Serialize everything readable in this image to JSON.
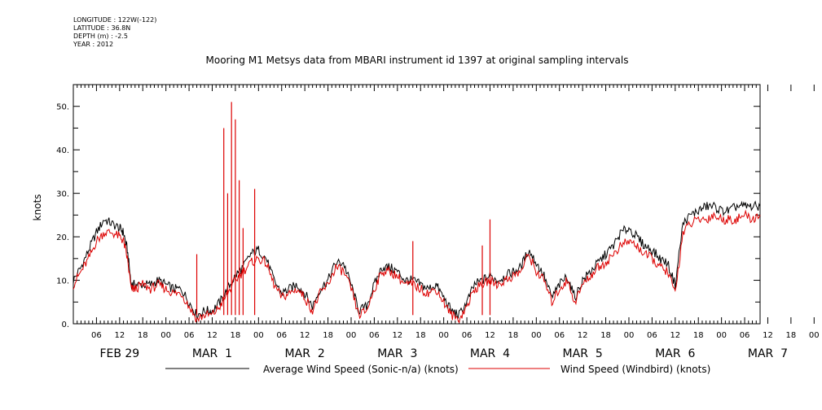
{
  "header": {
    "longitude": "LONGITUDE : 122W(-122)",
    "latitude": "LATITUDE : 36.8N",
    "depth": "DEPTH (m) : -2.5",
    "year": "YEAR : 2012"
  },
  "chart_data": {
    "type": "line",
    "title": "Mooring M1 Metsys data from MBARI instrument id 1397 at original sampling intervals",
    "ylabel": "knots",
    "xlabel": "",
    "x_units": "hours since FEB 29 00:00 (2012)",
    "xlim": [
      0,
      178
    ],
    "ylim": [
      0,
      55
    ],
    "yticks": [
      0,
      10,
      20,
      30,
      40,
      50
    ],
    "ytick_labels": [
      "0.",
      "10.",
      "20.",
      "30.",
      "40.",
      "50."
    ],
    "hour_ticks": [
      "06",
      "12",
      "18",
      "00",
      "06",
      "12",
      "18",
      "00",
      "06",
      "12",
      "18",
      "00",
      "06",
      "12",
      "18",
      "00",
      "06",
      "12",
      "18",
      "00",
      "06",
      "12",
      "18",
      "00",
      "06",
      "12",
      "18",
      "00",
      "06",
      "12",
      "18",
      "00"
    ],
    "day_labels": [
      "FEB 29",
      "MAR  1",
      "MAR  2",
      "MAR  3",
      "MAR  4",
      "MAR  5",
      "MAR  6",
      "MAR  7"
    ],
    "grid": false,
    "legend_position": "bottom",
    "series": [
      {
        "name": "Average Wind Speed (Sonic-n/a) (knots)",
        "color": "#000000",
        "x": [
          0,
          2,
          4,
          6,
          8,
          10,
          12,
          13,
          14,
          15,
          16,
          18,
          20,
          22,
          24,
          26,
          28,
          30,
          32,
          34,
          36,
          38,
          40,
          42,
          44,
          46,
          48,
          50,
          52,
          54,
          56,
          58,
          60,
          62,
          64,
          66,
          68,
          70,
          72,
          74,
          76,
          78,
          80,
          82,
          84,
          86,
          88,
          90,
          92,
          94,
          96,
          98,
          100,
          102,
          104,
          106,
          108,
          110,
          112,
          114,
          116,
          118,
          120,
          122,
          124,
          126,
          128,
          130,
          132,
          134,
          136,
          138,
          140,
          142,
          144,
          146,
          148,
          150,
          152,
          154,
          156,
          158,
          160,
          162,
          164,
          166,
          168,
          170,
          172,
          174,
          176,
          178
        ],
        "y": [
          10,
          13,
          17,
          21,
          24,
          23,
          22,
          21,
          17,
          9,
          9,
          9,
          9,
          10,
          9,
          8,
          8,
          5,
          2,
          3,
          3,
          5,
          8,
          11,
          13,
          16,
          17,
          15,
          10,
          7,
          8,
          9,
          7,
          4,
          8,
          10,
          14,
          14,
          9,
          3,
          4,
          9,
          13,
          13,
          12,
          10,
          10,
          9,
          8,
          9,
          6,
          3,
          2,
          5,
          9,
          10,
          11,
          10,
          11,
          12,
          13,
          17,
          14,
          11,
          6,
          9,
          11,
          6,
          10,
          12,
          14,
          16,
          18,
          21,
          22,
          20,
          18,
          17,
          15,
          14,
          9,
          23,
          25,
          26,
          27,
          27,
          26,
          26,
          27,
          27,
          27,
          27
        ]
      },
      {
        "name": "Wind Speed (Windbird) (knots)",
        "color": "#dd0000",
        "x": [
          0,
          2,
          4,
          6,
          8,
          10,
          12,
          13,
          14,
          15,
          16,
          18,
          20,
          22,
          24,
          26,
          28,
          30,
          32,
          34,
          36,
          38,
          40,
          42,
          44,
          46,
          48,
          50,
          52,
          54,
          56,
          58,
          60,
          62,
          64,
          66,
          68,
          70,
          72,
          74,
          76,
          78,
          80,
          82,
          84,
          86,
          88,
          90,
          92,
          94,
          96,
          98,
          100,
          102,
          104,
          106,
          108,
          110,
          112,
          114,
          116,
          118,
          120,
          122,
          124,
          126,
          128,
          130,
          132,
          134,
          136,
          138,
          140,
          142,
          144,
          146,
          148,
          150,
          152,
          154,
          156,
          158,
          160,
          162,
          164,
          166,
          168,
          170,
          172,
          174,
          176,
          178
        ],
        "y": [
          9,
          12,
          15,
          19,
          21,
          21,
          20,
          19,
          15,
          8,
          8,
          9,
          8,
          9,
          8,
          7,
          7,
          4,
          1,
          2,
          2,
          4,
          7,
          10,
          12,
          14,
          15,
          14,
          9,
          6,
          7,
          8,
          6,
          3,
          7,
          9,
          13,
          12,
          8,
          2,
          3,
          8,
          12,
          12,
          11,
          9,
          9,
          8,
          7,
          8,
          5,
          2,
          1,
          4,
          8,
          9,
          10,
          9,
          10,
          11,
          12,
          16,
          12,
          10,
          5,
          8,
          10,
          5,
          9,
          11,
          13,
          14,
          16,
          18,
          19,
          18,
          16,
          15,
          13,
          12,
          7,
          21,
          23,
          24,
          24,
          25,
          24,
          24,
          24,
          25,
          24,
          25
        ],
        "spikes": [
          {
            "x": 39,
            "y": 45
          },
          {
            "x": 40,
            "y": 30
          },
          {
            "x": 41,
            "y": 51
          },
          {
            "x": 42,
            "y": 47
          },
          {
            "x": 43,
            "y": 33
          },
          {
            "x": 44,
            "y": 22
          },
          {
            "x": 47,
            "y": 31
          },
          {
            "x": 32,
            "y": 16
          },
          {
            "x": 88,
            "y": 19
          },
          {
            "x": 106,
            "y": 18
          },
          {
            "x": 108,
            "y": 24
          }
        ]
      }
    ]
  }
}
